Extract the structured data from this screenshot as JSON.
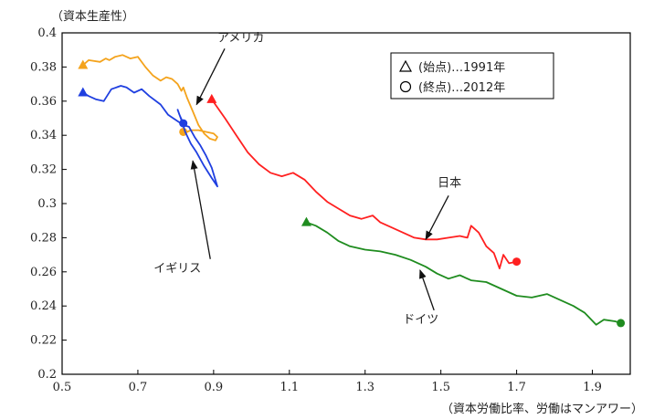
{
  "chart_data": {
    "type": "line",
    "ylabel": "（資本生産性）",
    "xlabel": "（資本労働比率、労働はマンアワー）",
    "xlim": [
      0.5,
      2.0
    ],
    "ylim": [
      0.2,
      0.4
    ],
    "xticks": [
      "0.5",
      "0.7",
      "0.9",
      "1.1",
      "1.3",
      "1.5",
      "1.7",
      "1.9"
    ],
    "xtick_values": [
      0.5,
      0.7,
      0.9,
      1.1,
      1.3,
      1.5,
      1.7,
      1.9
    ],
    "yticks": [
      "0.2",
      "0.22",
      "0.24",
      "0.26",
      "0.28",
      "0.3",
      "0.32",
      "0.34",
      "0.36",
      "0.38",
      "0.4"
    ],
    "ytick_values": [
      0.2,
      0.22,
      0.24,
      0.26,
      0.28,
      0.3,
      0.32,
      0.34,
      0.36,
      0.38,
      0.4
    ],
    "legend": {
      "position": "top-right",
      "start_label": "(始点)…1991年",
      "end_label": "(終点)…2012年",
      "start_marker": "triangle",
      "end_marker": "circle"
    },
    "series": [
      {
        "name": "アメリカ",
        "color": "#f4a31c",
        "start": [
          0.555,
          0.381
        ],
        "end": [
          0.82,
          0.342
        ],
        "points": [
          [
            0.555,
            0.381
          ],
          [
            0.57,
            0.384
          ],
          [
            0.6,
            0.383
          ],
          [
            0.615,
            0.385
          ],
          [
            0.625,
            0.384
          ],
          [
            0.64,
            0.386
          ],
          [
            0.66,
            0.387
          ],
          [
            0.68,
            0.385
          ],
          [
            0.7,
            0.386
          ],
          [
            0.72,
            0.38
          ],
          [
            0.74,
            0.375
          ],
          [
            0.76,
            0.372
          ],
          [
            0.775,
            0.374
          ],
          [
            0.79,
            0.373
          ],
          [
            0.805,
            0.37
          ],
          [
            0.815,
            0.366
          ],
          [
            0.82,
            0.368
          ],
          [
            0.83,
            0.362
          ],
          [
            0.845,
            0.354
          ],
          [
            0.86,
            0.346
          ],
          [
            0.875,
            0.341
          ],
          [
            0.89,
            0.338
          ],
          [
            0.905,
            0.337
          ],
          [
            0.91,
            0.339
          ],
          [
            0.9,
            0.341
          ],
          [
            0.88,
            0.342
          ],
          [
            0.86,
            0.343
          ],
          [
            0.84,
            0.343
          ],
          [
            0.83,
            0.342
          ],
          [
            0.82,
            0.342
          ]
        ]
      },
      {
        "name": "イギリス",
        "color": "#1f3fe0",
        "start": [
          0.555,
          0.365
        ],
        "end": [
          0.82,
          0.347
        ],
        "points": [
          [
            0.555,
            0.365
          ],
          [
            0.57,
            0.363
          ],
          [
            0.59,
            0.361
          ],
          [
            0.61,
            0.36
          ],
          [
            0.63,
            0.367
          ],
          [
            0.655,
            0.369
          ],
          [
            0.67,
            0.368
          ],
          [
            0.69,
            0.365
          ],
          [
            0.71,
            0.367
          ],
          [
            0.73,
            0.363
          ],
          [
            0.76,
            0.358
          ],
          [
            0.78,
            0.352
          ],
          [
            0.8,
            0.349
          ],
          [
            0.82,
            0.346
          ],
          [
            0.835,
            0.345
          ],
          [
            0.85,
            0.339
          ],
          [
            0.865,
            0.334
          ],
          [
            0.88,
            0.328
          ],
          [
            0.895,
            0.321
          ],
          [
            0.91,
            0.31
          ],
          [
            0.895,
            0.315
          ],
          [
            0.875,
            0.322
          ],
          [
            0.855,
            0.33
          ],
          [
            0.84,
            0.335
          ],
          [
            0.825,
            0.342
          ],
          [
            0.815,
            0.349
          ],
          [
            0.805,
            0.355
          ],
          [
            0.81,
            0.352
          ],
          [
            0.82,
            0.347
          ]
        ]
      },
      {
        "name": "日本",
        "color": "#ff2020",
        "start": [
          0.895,
          0.361
        ],
        "end": [
          1.7,
          0.266
        ],
        "points": [
          [
            0.895,
            0.361
          ],
          [
            0.93,
            0.35
          ],
          [
            0.96,
            0.34
          ],
          [
            0.99,
            0.33
          ],
          [
            1.02,
            0.323
          ],
          [
            1.05,
            0.318
          ],
          [
            1.08,
            0.316
          ],
          [
            1.11,
            0.318
          ],
          [
            1.14,
            0.314
          ],
          [
            1.17,
            0.307
          ],
          [
            1.2,
            0.301
          ],
          [
            1.23,
            0.297
          ],
          [
            1.26,
            0.293
          ],
          [
            1.29,
            0.291
          ],
          [
            1.32,
            0.293
          ],
          [
            1.34,
            0.289
          ],
          [
            1.37,
            0.286
          ],
          [
            1.4,
            0.283
          ],
          [
            1.43,
            0.28
          ],
          [
            1.46,
            0.279
          ],
          [
            1.49,
            0.279
          ],
          [
            1.52,
            0.28
          ],
          [
            1.55,
            0.281
          ],
          [
            1.57,
            0.28
          ],
          [
            1.58,
            0.287
          ],
          [
            1.6,
            0.283
          ],
          [
            1.62,
            0.275
          ],
          [
            1.64,
            0.271
          ],
          [
            1.655,
            0.262
          ],
          [
            1.665,
            0.27
          ],
          [
            1.68,
            0.265
          ],
          [
            1.7,
            0.266
          ]
        ]
      },
      {
        "name": "ドイツ",
        "color": "#1f8c1f",
        "start": [
          1.145,
          0.289
        ],
        "end": [
          1.975,
          0.23
        ],
        "points": [
          [
            1.145,
            0.289
          ],
          [
            1.17,
            0.287
          ],
          [
            1.2,
            0.283
          ],
          [
            1.23,
            0.278
          ],
          [
            1.26,
            0.275
          ],
          [
            1.3,
            0.273
          ],
          [
            1.34,
            0.272
          ],
          [
            1.38,
            0.27
          ],
          [
            1.42,
            0.267
          ],
          [
            1.46,
            0.263
          ],
          [
            1.49,
            0.259
          ],
          [
            1.52,
            0.256
          ],
          [
            1.55,
            0.258
          ],
          [
            1.58,
            0.255
          ],
          [
            1.62,
            0.254
          ],
          [
            1.66,
            0.25
          ],
          [
            1.7,
            0.246
          ],
          [
            1.74,
            0.245
          ],
          [
            1.78,
            0.247
          ],
          [
            1.81,
            0.244
          ],
          [
            1.85,
            0.24
          ],
          [
            1.88,
            0.236
          ],
          [
            1.91,
            0.229
          ],
          [
            1.93,
            0.232
          ],
          [
            1.96,
            0.231
          ],
          [
            1.975,
            0.23
          ]
        ]
      }
    ],
    "annotations": [
      {
        "text": "アメリカ",
        "series": "アメリカ",
        "arrow_to": [
          0.855,
          0.358
        ],
        "label_at": [
          0.91,
          0.395
        ]
      },
      {
        "text": "イギリス",
        "series": "イギリス",
        "arrow_to": [
          0.845,
          0.325
        ],
        "label_at": [
          0.79,
          0.26
        ]
      },
      {
        "text": "日本",
        "series": "日本",
        "arrow_to": [
          1.46,
          0.279
        ],
        "label_at": [
          1.53,
          0.31
        ]
      },
      {
        "text": "ドイツ",
        "series": "ドイツ",
        "arrow_to": [
          1.445,
          0.261
        ],
        "label_at": [
          1.4,
          0.23
        ]
      }
    ]
  }
}
